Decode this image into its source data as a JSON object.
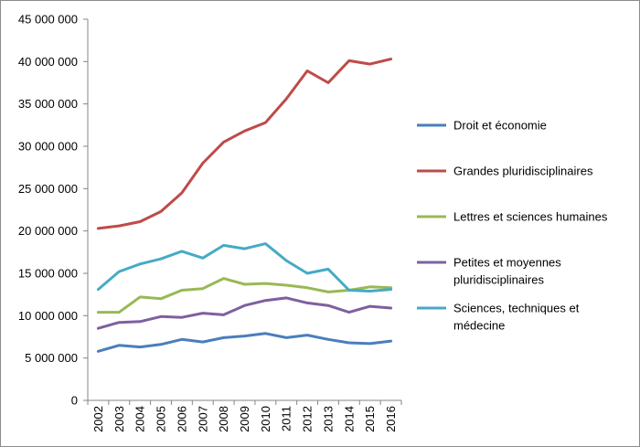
{
  "chart_data": {
    "type": "line",
    "title": "",
    "xlabel": "",
    "ylabel": "",
    "ylim": [
      0,
      45000000
    ],
    "y_ticks": [
      0,
      5000000,
      10000000,
      15000000,
      20000000,
      25000000,
      30000000,
      35000000,
      40000000,
      45000000
    ],
    "y_tick_labels": [
      "0",
      "5 000 000",
      "10 000 000",
      "15 000 000",
      "20 000 000",
      "25 000 000",
      "30 000 000",
      "35 000 000",
      "40 000 000",
      "45 000 000"
    ],
    "categories": [
      "2002",
      "2003",
      "2004",
      "2005",
      "2006",
      "2007",
      "2008",
      "2009",
      "2010",
      "2011",
      "2012",
      "2013",
      "2014",
      "2015",
      "2016"
    ],
    "grid": false,
    "legend_position": "right",
    "series": [
      {
        "name": "Droit et économie",
        "color": "#4a7ebb",
        "values": [
          5800000,
          6500000,
          6300000,
          6600000,
          7200000,
          6900000,
          7400000,
          7600000,
          7900000,
          7400000,
          7700000,
          7200000,
          6800000,
          6700000,
          7000000
        ]
      },
      {
        "name": "Grandes pluridisciplinaires",
        "color": "#be4b48",
        "values": [
          20300000,
          20600000,
          21100000,
          22300000,
          24500000,
          28000000,
          30500000,
          31800000,
          32800000,
          35600000,
          38900000,
          37500000,
          40100000,
          39700000,
          40300000
        ]
      },
      {
        "name": "Lettres et sciences humaines",
        "color": "#98b954",
        "values": [
          10400000,
          10400000,
          12200000,
          12000000,
          13000000,
          13200000,
          14400000,
          13700000,
          13800000,
          13600000,
          13300000,
          12800000,
          13000000,
          13400000,
          13300000
        ]
      },
      {
        "name": "Petites et moyennes pluridisciplinaires",
        "label_lines": [
          "Petites et moyennes",
          "pluridisciplinaires"
        ],
        "color": "#7d60a0",
        "values": [
          8500000,
          9200000,
          9300000,
          9900000,
          9800000,
          10300000,
          10100000,
          11200000,
          11800000,
          12100000,
          11500000,
          11200000,
          10400000,
          11100000,
          10900000
        ]
      },
      {
        "name": "Sciences, techniques et médecine",
        "label_lines": [
          "Sciences, techniques et",
          "médecine"
        ],
        "color": "#46aac5",
        "values": [
          13100000,
          15200000,
          16100000,
          16700000,
          17600000,
          16800000,
          18300000,
          17900000,
          18500000,
          16500000,
          15000000,
          15500000,
          13000000,
          12900000,
          13100000
        ]
      }
    ]
  }
}
